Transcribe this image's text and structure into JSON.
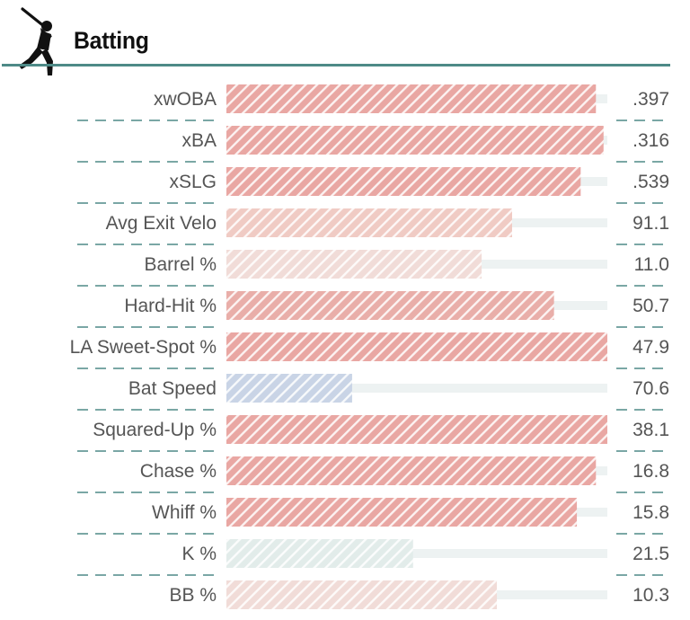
{
  "header": {
    "title": "Batting",
    "icon": "baseball-batter-icon"
  },
  "colors": {
    "accent": "#4e8a87"
  },
  "chart_data": {
    "type": "bar",
    "title": "Batting",
    "rows": [
      {
        "label": "xwOBA",
        "value": ".397",
        "percentile": 97,
        "color": "#e9a7a3"
      },
      {
        "label": "xBA",
        "value": ".316",
        "percentile": 99,
        "color": "#e9a7a3"
      },
      {
        "label": "xSLG",
        "value": ".539",
        "percentile": 93,
        "color": "#e9a7a3"
      },
      {
        "label": "Avg Exit Velo",
        "value": "91.1",
        "percentile": 75,
        "color": "#f0cbc4"
      },
      {
        "label": "Barrel %",
        "value": "11.0",
        "percentile": 67,
        "color": "#f1dcd8"
      },
      {
        "label": "Hard-Hit %",
        "value": "50.7",
        "percentile": 86,
        "color": "#e9aea9"
      },
      {
        "label": "LA Sweet-Spot %",
        "value": "47.9",
        "percentile": 100,
        "color": "#e9a7a3"
      },
      {
        "label": "Bat Speed",
        "value": "70.6",
        "percentile": 33,
        "color": "#c9d4e6"
      },
      {
        "label": "Squared-Up %",
        "value": "38.1",
        "percentile": 100,
        "color": "#e9a7a3"
      },
      {
        "label": "Chase %",
        "value": "16.8",
        "percentile": 97,
        "color": "#e9a7a3"
      },
      {
        "label": "Whiff %",
        "value": "15.8",
        "percentile": 92,
        "color": "#e9a7a3"
      },
      {
        "label": "K %",
        "value": "21.5",
        "percentile": 49,
        "color": "#e2ecea"
      },
      {
        "label": "BB %",
        "value": "10.3",
        "percentile": 71,
        "color": "#f1dcd8"
      }
    ],
    "xlim": [
      0,
      100
    ],
    "grid": false,
    "legend": "none"
  }
}
